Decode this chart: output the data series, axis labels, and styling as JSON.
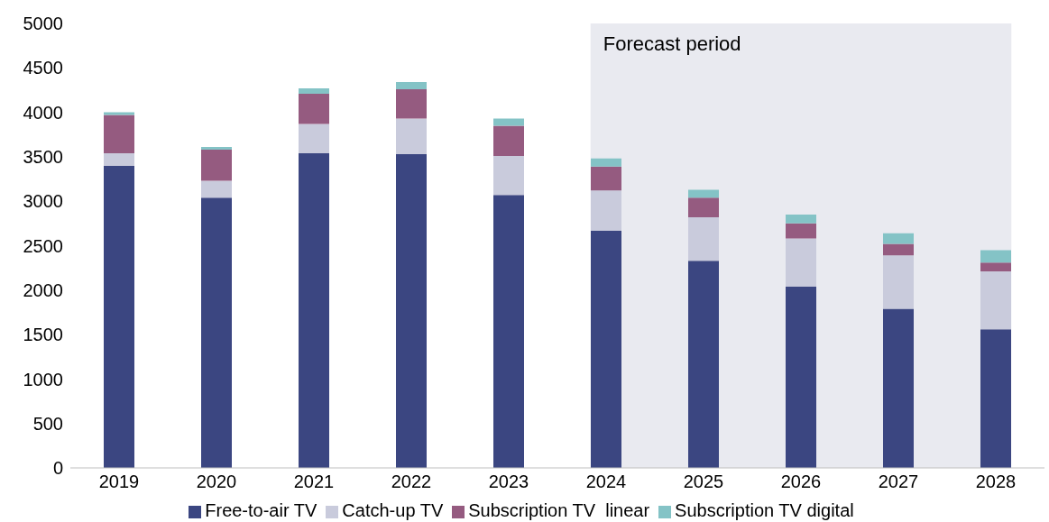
{
  "chart_data": {
    "type": "bar",
    "stacked": true,
    "categories": [
      "2019",
      "2020",
      "2021",
      "2022",
      "2023",
      "2024",
      "2025",
      "2026",
      "2027",
      "2028"
    ],
    "series": [
      {
        "name": "Free-to-air TV",
        "color": "#3b4681",
        "values": [
          3400,
          3040,
          3540,
          3530,
          3070,
          2670,
          2330,
          2040,
          1790,
          1560
        ]
      },
      {
        "name": "Catch-up TV",
        "color": "#c9cbdc",
        "values": [
          140,
          190,
          330,
          400,
          440,
          450,
          490,
          540,
          600,
          650
        ]
      },
      {
        "name": "Subscription TV  linear",
        "color": "#955b80",
        "values": [
          430,
          350,
          340,
          330,
          340,
          270,
          220,
          170,
          130,
          100
        ]
      },
      {
        "name": "Subscription TV digital",
        "color": "#84c3c6",
        "values": [
          30,
          30,
          60,
          80,
          80,
          90,
          90,
          100,
          120,
          140
        ]
      }
    ],
    "ylim": [
      0,
      5000
    ],
    "yticks": [
      0,
      500,
      1000,
      1500,
      2000,
      2500,
      3000,
      3500,
      4000,
      4500,
      5000
    ],
    "bands": [
      {
        "axis": "x",
        "from": "2024",
        "to": "2028",
        "label": "Forecast period",
        "color": "#e9eaf0"
      }
    ],
    "legend": "bottom"
  }
}
